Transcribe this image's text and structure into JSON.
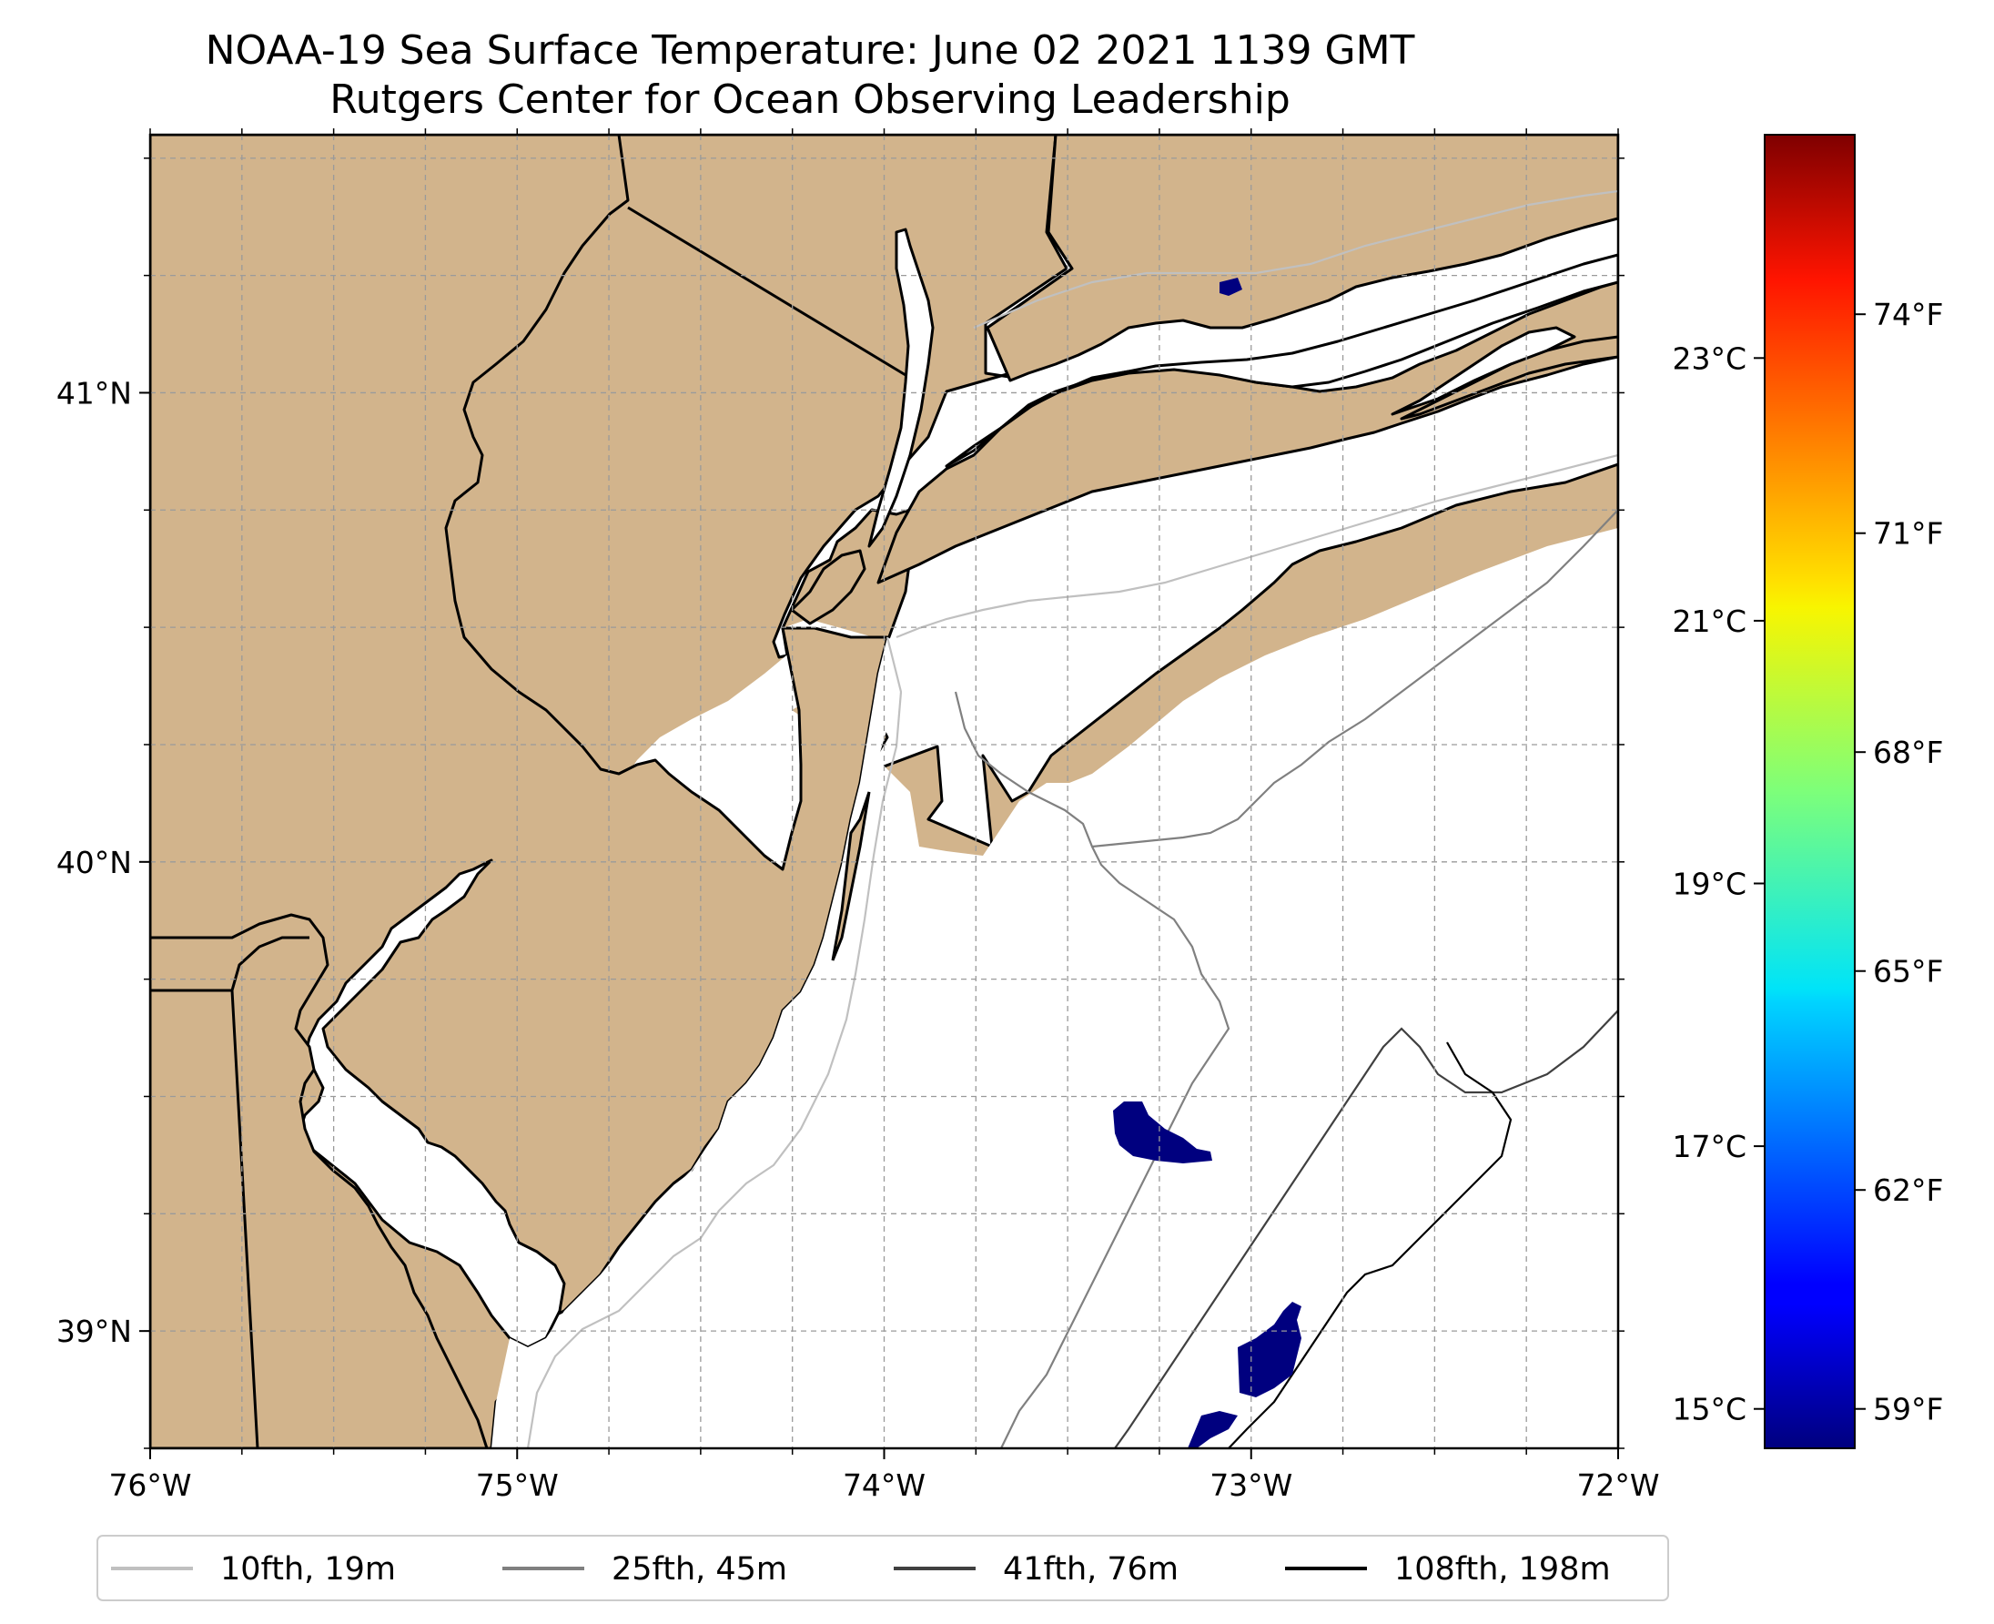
{
  "title": {
    "line1": "NOAA-19 Sea Surface Temperature: June 02 2021 1139 GMT",
    "line2": "Rutgers Center for Ocean Observing Leadership"
  },
  "map": {
    "lon_range": [
      -76,
      -72
    ],
    "lat_range": [
      38.75,
      41.55
    ],
    "land_color": "#d2b48c",
    "water_color": "#ffffff",
    "gridlines": true,
    "lon_ticks": [
      {
        "value": -76,
        "label": "76°W"
      },
      {
        "value": -75,
        "label": "75°W"
      },
      {
        "value": -74,
        "label": "74°W"
      },
      {
        "value": -73,
        "label": "73°W"
      },
      {
        "value": -72,
        "label": "72°W"
      }
    ],
    "lat_ticks": [
      {
        "value": 41,
        "label": "41°N"
      },
      {
        "value": 40,
        "label": "40°N"
      },
      {
        "value": 39,
        "label": "39°N"
      }
    ]
  },
  "legend": {
    "placement": "bottom",
    "items": [
      {
        "label": "10fth, 19m",
        "color": "#c0c0c0"
      },
      {
        "label": "25fth, 45m",
        "color": "#808080"
      },
      {
        "label": "41fth, 76m",
        "color": "#404040"
      },
      {
        "label": "108fth, 198m",
        "color": "#000000"
      }
    ]
  },
  "colorbar": {
    "colormap": "jet",
    "celsius_range": [
      14.7,
      24.7
    ],
    "celsius_ticks": [
      {
        "value": 15,
        "label": "15°C"
      },
      {
        "value": 17,
        "label": "17°C"
      },
      {
        "value": 19,
        "label": "19°C"
      },
      {
        "value": 21,
        "label": "21°C"
      },
      {
        "value": 23,
        "label": "23°C"
      }
    ],
    "fahrenheit_ticks": [
      {
        "value": 59,
        "label": "59°F"
      },
      {
        "value": 62,
        "label": "62°F"
      },
      {
        "value": 65,
        "label": "65°F"
      },
      {
        "value": 68,
        "label": "68°F"
      },
      {
        "value": 71,
        "label": "71°F"
      },
      {
        "value": 74,
        "label": "74°F"
      }
    ]
  }
}
